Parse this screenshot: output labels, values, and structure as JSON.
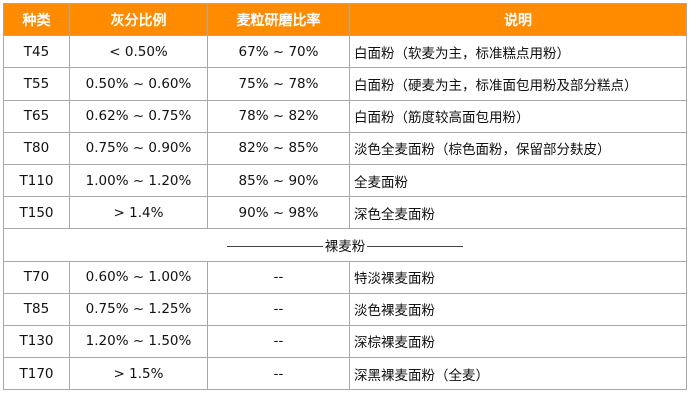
{
  "header": {
    "type": "种类",
    "ash": "灰分比例",
    "extraction": "麦粒研磨比率",
    "desc": "说明"
  },
  "colors": {
    "header_bg": "#ff8c00",
    "header_text": "#ffffff",
    "border": "#a8a8a8"
  },
  "wheat_rows": [
    {
      "type": "T45",
      "ash": "< 0.50%",
      "extraction": "67% ~ 70%",
      "desc": "白面粉（软麦为主，标准糕点用粉）"
    },
    {
      "type": "T55",
      "ash": "0.50% ~ 0.60%",
      "extraction": "75% ~ 78%",
      "desc": "白面粉（硬麦为主，标准面包用粉及部分糕点）"
    },
    {
      "type": "T65",
      "ash": "0.62% ~ 0.75%",
      "extraction": "78% ~ 82%",
      "desc": "白面粉（筋度较高面包用粉）"
    },
    {
      "type": "T80",
      "ash": "0.75% ~ 0.90%",
      "extraction": "82% ~ 85%",
      "desc": "淡色全麦面粉（棕色面粉，保留部分麸皮）"
    },
    {
      "type": "T110",
      "ash": "1.00% ~ 1.20%",
      "extraction": "85% ~ 90%",
      "desc": "全麦面粉"
    },
    {
      "type": "T150",
      "ash": "> 1.4%",
      "extraction": "90% ~ 98%",
      "desc": "深色全麦面粉"
    }
  ],
  "section": {
    "label": "裸麦粉"
  },
  "rye_rows": [
    {
      "type": "T70",
      "ash": "0.60% ~ 1.00%",
      "extraction": "--",
      "desc": "特淡裸麦面粉"
    },
    {
      "type": "T85",
      "ash": "0.75% ~ 1.25%",
      "extraction": "--",
      "desc": "淡色裸麦面粉"
    },
    {
      "type": "T130",
      "ash": "1.20% ~ 1.50%",
      "extraction": "--",
      "desc": "深棕裸麦面粉"
    },
    {
      "type": "T170",
      "ash": "> 1.5%",
      "extraction": "--",
      "desc": "深黑裸麦面粉（全麦）"
    }
  ]
}
